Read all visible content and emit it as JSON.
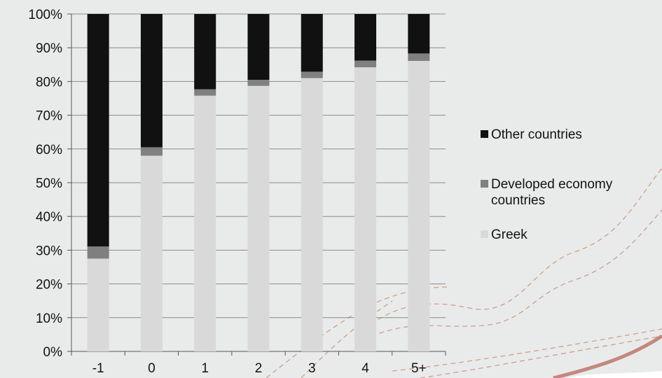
{
  "chart_data": {
    "type": "bar",
    "stacked": true,
    "percent_stacked": true,
    "categories": [
      "-1",
      "0",
      "1",
      "2",
      "3",
      "4",
      "5+"
    ],
    "series": [
      {
        "name": "Greek",
        "color": "#d9d9d9",
        "values": [
          27.5,
          58,
          75.8,
          78.7,
          81,
          84.2,
          86.1
        ]
      },
      {
        "name": "Developed economy countries",
        "color": "#808080",
        "values": [
          3.6,
          2.5,
          1.9,
          1.8,
          1.9,
          2.0,
          2.2
        ]
      },
      {
        "name": "Other countries",
        "color": "#111111",
        "values": [
          68.9,
          39.5,
          22.3,
          19.5,
          17.1,
          13.8,
          11.7
        ]
      }
    ],
    "y_ticks": [
      "0%",
      "10%",
      "20%",
      "30%",
      "40%",
      "50%",
      "60%",
      "70%",
      "80%",
      "90%",
      "100%"
    ],
    "ylim": [
      0,
      100
    ],
    "grid": true,
    "legend_position": "right",
    "legend_entries": [
      {
        "label": "Other countries",
        "color": "#111111"
      },
      {
        "label": "Developed economy countries",
        "color": "#808080"
      },
      {
        "label": "Greek",
        "color": "#d9d9d9"
      }
    ]
  }
}
